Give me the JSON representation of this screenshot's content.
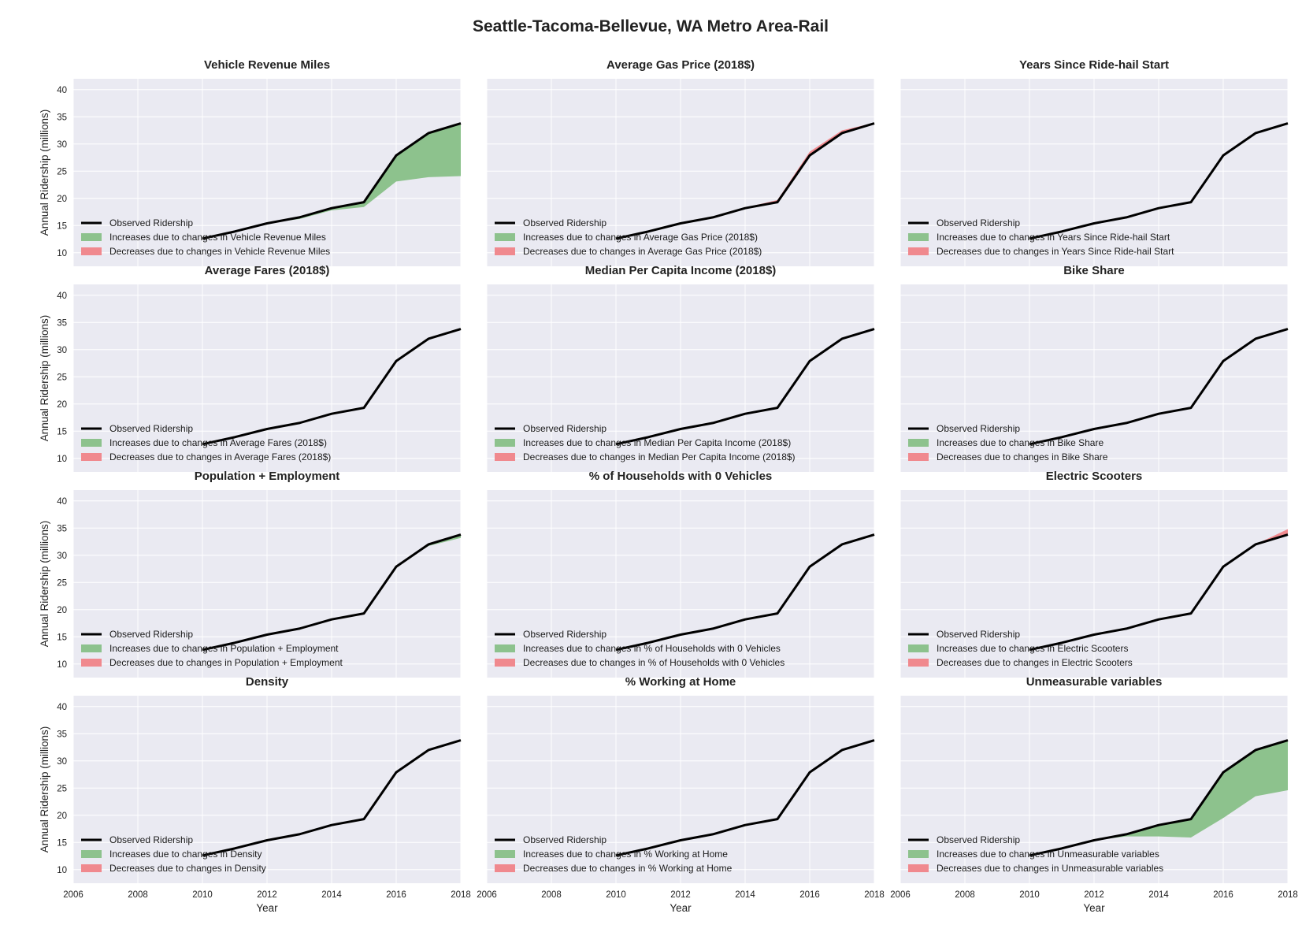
{
  "figure": {
    "title": "Seattle-Tacoma-Bellevue, WA Metro Area-Rail",
    "ylabel": "Annual Ridership (millions)",
    "xlabel": "Year",
    "legend": {
      "observed": "Observed Ridership",
      "increase_prefix": "Increases due to changes in ",
      "decrease_prefix": "Decreases due to changes in "
    },
    "colors": {
      "panel_bg": "#EAEAF2",
      "grid": "#FFFFFF",
      "line": "#000000",
      "increase": "#8DC28D",
      "decrease": "#F0898E"
    }
  },
  "chart_data": [
    {
      "type": "area",
      "title": "Vehicle Revenue Miles",
      "legend": [
        "Observed Ridership",
        "Increases due to changes in Vehicle Revenue Miles",
        "Decreases due to changes in Vehicle Revenue Miles"
      ],
      "legend_placement": "lower-left",
      "xlim": [
        2006,
        2018
      ],
      "ylim": [
        7.5,
        42
      ],
      "x_ticks": [
        "2006",
        "2008",
        "2010",
        "2012",
        "2014",
        "2016",
        "2018"
      ],
      "y_ticks": [
        "10",
        "15",
        "20",
        "25",
        "30",
        "35",
        "40"
      ],
      "x": [
        2010,
        2011,
        2012,
        2013,
        2014,
        2015,
        2016,
        2017,
        2018
      ],
      "observed": [
        12.6,
        13.9,
        15.4,
        16.5,
        18.2,
        19.3,
        27.9,
        32.0,
        33.8
      ],
      "counterfactual": [
        12.6,
        13.9,
        15.4,
        16.2,
        17.8,
        18.4,
        23.1,
        23.9,
        24.1
      ]
    },
    {
      "type": "area",
      "title": "Average Gas Price (2018$)",
      "legend": [
        "Observed Ridership",
        "Increases due to changes in Average Gas Price (2018$)",
        "Decreases due to changes in Average Gas Price (2018$)"
      ],
      "legend_placement": "lower-left",
      "xlim": [
        2006,
        2018
      ],
      "ylim": [
        7.5,
        42
      ],
      "x_ticks": [
        "2006",
        "2008",
        "2010",
        "2012",
        "2014",
        "2016",
        "2018"
      ],
      "y_ticks": [
        "10",
        "15",
        "20",
        "25",
        "30",
        "35",
        "40"
      ],
      "x": [
        2010,
        2011,
        2012,
        2013,
        2014,
        2015,
        2016,
        2017,
        2018
      ],
      "observed": [
        12.6,
        13.9,
        15.4,
        16.5,
        18.2,
        19.3,
        27.9,
        32.0,
        33.8
      ],
      "counterfactual": [
        12.6,
        13.9,
        15.4,
        16.5,
        18.3,
        19.7,
        28.6,
        32.5,
        33.9
      ]
    },
    {
      "type": "area",
      "title": "Years Since Ride-hail Start",
      "legend": [
        "Observed Ridership",
        "Increases due to changes in Years Since Ride-hail Start",
        "Decreases due to changes in Years Since Ride-hail Start"
      ],
      "legend_placement": "lower-left",
      "xlim": [
        2006,
        2018
      ],
      "ylim": [
        7.5,
        42
      ],
      "x_ticks": [
        "2006",
        "2008",
        "2010",
        "2012",
        "2014",
        "2016",
        "2018"
      ],
      "y_ticks": [
        "10",
        "15",
        "20",
        "25",
        "30",
        "35",
        "40"
      ],
      "x": [
        2010,
        2011,
        2012,
        2013,
        2014,
        2015,
        2016,
        2017,
        2018
      ],
      "observed": [
        12.6,
        13.9,
        15.4,
        16.5,
        18.2,
        19.3,
        27.9,
        32.0,
        33.8
      ],
      "counterfactual": [
        12.6,
        13.9,
        15.4,
        16.5,
        18.2,
        19.3,
        27.9,
        32.0,
        33.8
      ]
    },
    {
      "type": "area",
      "title": "Average Fares (2018$)",
      "legend": [
        "Observed Ridership",
        "Increases due to changes in Average Fares (2018$)",
        "Decreases due to changes in Average Fares (2018$)"
      ],
      "legend_placement": "lower-left",
      "xlim": [
        2006,
        2018
      ],
      "ylim": [
        7.5,
        42
      ],
      "x_ticks": [
        "2006",
        "2008",
        "2010",
        "2012",
        "2014",
        "2016",
        "2018"
      ],
      "y_ticks": [
        "10",
        "15",
        "20",
        "25",
        "30",
        "35",
        "40"
      ],
      "x": [
        2010,
        2011,
        2012,
        2013,
        2014,
        2015,
        2016,
        2017,
        2018
      ],
      "observed": [
        12.6,
        13.9,
        15.4,
        16.5,
        18.2,
        19.3,
        27.9,
        32.0,
        33.8
      ],
      "counterfactual": [
        12.6,
        13.9,
        15.4,
        16.5,
        18.2,
        19.3,
        27.9,
        32.0,
        33.7
      ]
    },
    {
      "type": "area",
      "title": "Median Per Capita Income (2018$)",
      "legend": [
        "Observed Ridership",
        "Increases due to changes in Median Per Capita Income (2018$)",
        "Decreases due to changes in Median Per Capita Income (2018$)"
      ],
      "legend_placement": "lower-left",
      "xlim": [
        2006,
        2018
      ],
      "ylim": [
        7.5,
        42
      ],
      "x_ticks": [
        "2006",
        "2008",
        "2010",
        "2012",
        "2014",
        "2016",
        "2018"
      ],
      "y_ticks": [
        "10",
        "15",
        "20",
        "25",
        "30",
        "35",
        "40"
      ],
      "x": [
        2010,
        2011,
        2012,
        2013,
        2014,
        2015,
        2016,
        2017,
        2018
      ],
      "observed": [
        12.6,
        13.9,
        15.4,
        16.5,
        18.2,
        19.3,
        27.9,
        32.0,
        33.8
      ],
      "counterfactual": [
        12.6,
        13.9,
        15.4,
        16.5,
        18.2,
        19.3,
        27.9,
        32.0,
        33.8
      ]
    },
    {
      "type": "area",
      "title": "Bike Share",
      "legend": [
        "Observed Ridership",
        "Increases due to changes in Bike Share",
        "Decreases due to changes in Bike Share"
      ],
      "legend_placement": "lower-left",
      "xlim": [
        2006,
        2018
      ],
      "ylim": [
        7.5,
        42
      ],
      "x_ticks": [
        "2006",
        "2008",
        "2010",
        "2012",
        "2014",
        "2016",
        "2018"
      ],
      "y_ticks": [
        "10",
        "15",
        "20",
        "25",
        "30",
        "35",
        "40"
      ],
      "x": [
        2010,
        2011,
        2012,
        2013,
        2014,
        2015,
        2016,
        2017,
        2018
      ],
      "observed": [
        12.6,
        13.9,
        15.4,
        16.5,
        18.2,
        19.3,
        27.9,
        32.0,
        33.8
      ],
      "counterfactual": [
        12.6,
        13.9,
        15.4,
        16.5,
        18.2,
        19.3,
        27.9,
        32.0,
        33.8
      ]
    },
    {
      "type": "area",
      "title": "Population + Employment",
      "legend": [
        "Observed Ridership",
        "Increases due to changes in Population + Employment",
        "Decreases due to changes in Population + Employment"
      ],
      "legend_placement": "lower-left",
      "xlim": [
        2006,
        2018
      ],
      "ylim": [
        7.5,
        42
      ],
      "x_ticks": [
        "2006",
        "2008",
        "2010",
        "2012",
        "2014",
        "2016",
        "2018"
      ],
      "y_ticks": [
        "10",
        "15",
        "20",
        "25",
        "30",
        "35",
        "40"
      ],
      "x": [
        2010,
        2011,
        2012,
        2013,
        2014,
        2015,
        2016,
        2017,
        2018
      ],
      "observed": [
        12.6,
        13.9,
        15.4,
        16.5,
        18.2,
        19.3,
        27.9,
        32.0,
        33.8
      ],
      "counterfactual": [
        12.6,
        13.9,
        15.4,
        16.5,
        18.2,
        19.3,
        27.9,
        31.7,
        33.2
      ]
    },
    {
      "type": "area",
      "title": "% of Households with 0 Vehicles",
      "legend": [
        "Observed Ridership",
        "Increases due to changes in % of Households with 0 Vehicles",
        "Decreases due to changes in % of Households with 0 Vehicles"
      ],
      "legend_placement": "lower-left",
      "xlim": [
        2006,
        2018
      ],
      "ylim": [
        7.5,
        42
      ],
      "x_ticks": [
        "2006",
        "2008",
        "2010",
        "2012",
        "2014",
        "2016",
        "2018"
      ],
      "y_ticks": [
        "10",
        "15",
        "20",
        "25",
        "30",
        "35",
        "40"
      ],
      "x": [
        2010,
        2011,
        2012,
        2013,
        2014,
        2015,
        2016,
        2017,
        2018
      ],
      "observed": [
        12.6,
        13.9,
        15.4,
        16.5,
        18.2,
        19.3,
        27.9,
        32.0,
        33.8
      ],
      "counterfactual": [
        12.6,
        13.9,
        15.4,
        16.5,
        18.2,
        19.3,
        27.9,
        32.0,
        33.8
      ]
    },
    {
      "type": "area",
      "title": "Electric Scooters",
      "legend": [
        "Observed Ridership",
        "Increases due to changes in Electric Scooters",
        "Decreases due to changes in Electric Scooters"
      ],
      "legend_placement": "lower-left",
      "xlim": [
        2006,
        2018
      ],
      "ylim": [
        7.5,
        42
      ],
      "x_ticks": [
        "2006",
        "2008",
        "2010",
        "2012",
        "2014",
        "2016",
        "2018"
      ],
      "y_ticks": [
        "10",
        "15",
        "20",
        "25",
        "30",
        "35",
        "40"
      ],
      "x": [
        2010,
        2011,
        2012,
        2013,
        2014,
        2015,
        2016,
        2017,
        2018
      ],
      "observed": [
        12.6,
        13.9,
        15.4,
        16.5,
        18.2,
        19.3,
        27.9,
        32.0,
        33.8
      ],
      "counterfactual": [
        12.6,
        13.9,
        15.4,
        16.5,
        18.2,
        19.3,
        27.9,
        32.0,
        34.8
      ]
    },
    {
      "type": "area",
      "title": "Density",
      "legend": [
        "Observed Ridership",
        "Increases due to changes in Density",
        "Decreases due to changes in Density"
      ],
      "legend_placement": "lower-left",
      "xlim": [
        2006,
        2018
      ],
      "ylim": [
        7.5,
        42
      ],
      "x_ticks": [
        "2006",
        "2008",
        "2010",
        "2012",
        "2014",
        "2016",
        "2018"
      ],
      "y_ticks": [
        "10",
        "15",
        "20",
        "25",
        "30",
        "35",
        "40"
      ],
      "x": [
        2010,
        2011,
        2012,
        2013,
        2014,
        2015,
        2016,
        2017,
        2018
      ],
      "observed": [
        12.6,
        13.9,
        15.4,
        16.5,
        18.2,
        19.3,
        27.9,
        32.0,
        33.8
      ],
      "counterfactual": [
        12.6,
        13.9,
        15.4,
        16.5,
        18.2,
        19.3,
        27.9,
        32.0,
        33.8
      ]
    },
    {
      "type": "area",
      "title": "% Working at Home",
      "legend": [
        "Observed Ridership",
        "Increases due to changes in % Working at Home",
        "Decreases due to changes in % Working at Home"
      ],
      "legend_placement": "lower-left",
      "xlim": [
        2006,
        2018
      ],
      "ylim": [
        7.5,
        42
      ],
      "x_ticks": [
        "2006",
        "2008",
        "2010",
        "2012",
        "2014",
        "2016",
        "2018"
      ],
      "y_ticks": [
        "10",
        "15",
        "20",
        "25",
        "30",
        "35",
        "40"
      ],
      "x": [
        2010,
        2011,
        2012,
        2013,
        2014,
        2015,
        2016,
        2017,
        2018
      ],
      "observed": [
        12.6,
        13.9,
        15.4,
        16.5,
        18.2,
        19.3,
        27.9,
        32.0,
        33.8
      ],
      "counterfactual": [
        12.6,
        13.9,
        15.4,
        16.5,
        18.2,
        19.3,
        27.9,
        32.0,
        33.8
      ]
    },
    {
      "type": "area",
      "title": "Unmeasurable variables",
      "legend": [
        "Observed Ridership",
        "Increases due to changes in Unmeasurable variables",
        "Decreases due to changes in Unmeasurable variables"
      ],
      "legend_placement": "lower-left",
      "xlim": [
        2006,
        2018
      ],
      "ylim": [
        7.5,
        42
      ],
      "x_ticks": [
        "2006",
        "2008",
        "2010",
        "2012",
        "2014",
        "2016",
        "2018"
      ],
      "y_ticks": [
        "10",
        "15",
        "20",
        "25",
        "30",
        "35",
        "40"
      ],
      "x": [
        2010,
        2011,
        2012,
        2013,
        2014,
        2015,
        2016,
        2017,
        2018
      ],
      "observed": [
        12.6,
        13.9,
        15.4,
        16.5,
        18.2,
        19.3,
        27.9,
        32.0,
        33.8
      ],
      "counterfactual": [
        12.6,
        13.9,
        15.4,
        16.1,
        16.1,
        15.9,
        19.5,
        23.5,
        24.6
      ]
    }
  ]
}
